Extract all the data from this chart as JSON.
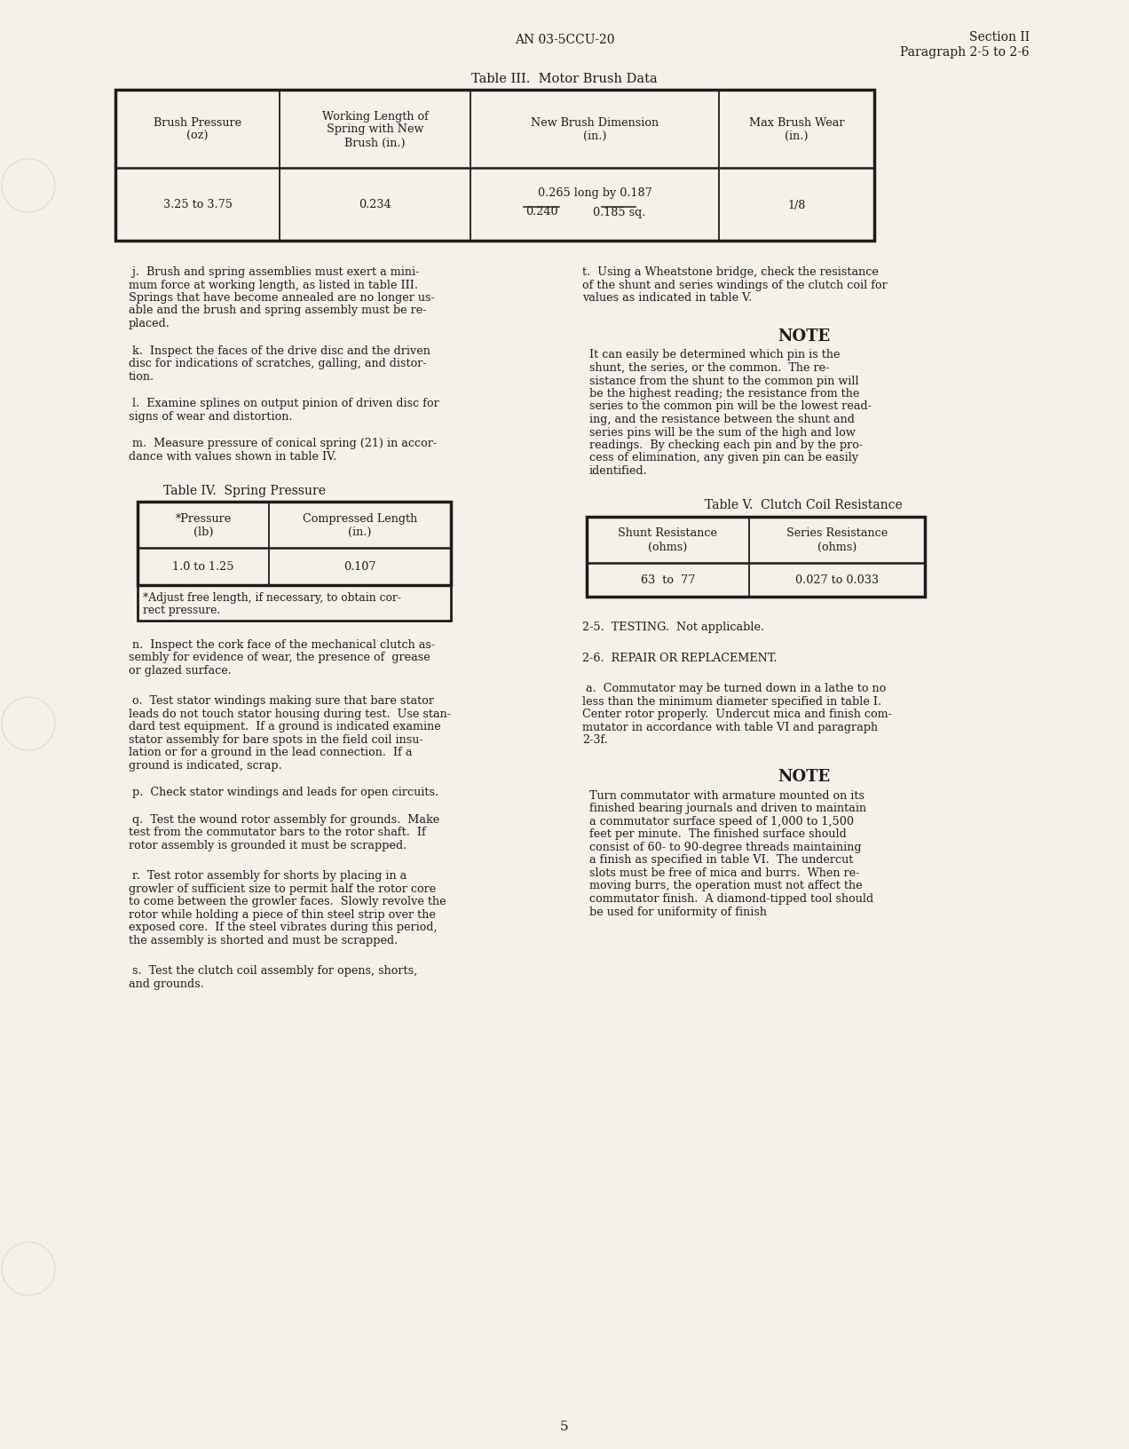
{
  "page_bg": "#f5f0e8",
  "header_doc_num": "AN 03-5CCU-20",
  "header_section": "Section II",
  "header_paragraph": "Paragraph 2-5 to 2-6",
  "table3_title": "Table III.  Motor Brush Data",
  "table3_col1_header": "Brush Pressure\n(oz)",
  "table3_col2_header": "Working Length of\nSpring with New\nBrush (in.)",
  "table3_col3_header": "New Brush Dimension\n(in.)",
  "table3_col4_header": "Max Brush Wear\n(in.)",
  "table3_data_col1": "3.25 to 3.75",
  "table3_data_col2": "0.234",
  "table3_data_col3_line1": "0.265 long by 0.187",
  "table3_data_col3_line2a": "0.240",
  "table3_data_col3_line2b": "0.185",
  "table3_data_col3_sq": "sq.",
  "table3_data_col4": "1/8",
  "table4_title": "Table IV.  Spring Pressure",
  "table4_col1_header": "*Pressure\n(lb)",
  "table4_col2_header": "Compressed Length\n(in.)",
  "table4_data_col1": "1.0 to 1.25",
  "table4_data_col2": "0.107",
  "table4_footnote_line1": "*Adjust free length, if necessary, to obtain cor-",
  "table4_footnote_line2": "rect pressure.",
  "table5_title": "Table V.  Clutch Coil Resistance",
  "table5_col1_header": "Shunt Resistance\n(ohms)",
  "table5_col2_header": "Series Resistance\n(ohms)",
  "table5_data_col1": "63  to  77",
  "table5_data_col2": "0.027 to 0.033",
  "note1_title": "NOTE",
  "note1_lines": [
    "It can easily be determined which pin is the",
    "shunt, the series, or the common.  The re-",
    "sistance from the shunt to the common pin will",
    "be the highest reading; the resistance from the",
    "series to the common pin will be the lowest read-",
    "ing, and the resistance between the shunt and",
    "series pins will be the sum of the high and low",
    "readings.  By checking each pin and by the pro-",
    "cess of elimination, any given pin can be easily",
    "identified."
  ],
  "note2_title": "NOTE",
  "note2_lines": [
    "Turn commutator with armature mounted on its",
    "finished bearing journals and driven to maintain",
    "a commutator surface speed of 1,000 to 1,500",
    "feet per minute.  The finished surface should",
    "consist of 60- to 90-degree threads maintaining",
    "a finish as specified in table VI.  The undercut",
    "slots must be free of mica and burrs.  When re-",
    "moving burrs, the operation must not affect the",
    "commutator finish.  A diamond-tipped tool should",
    "be used for uniformity of finish"
  ],
  "left_para_j_lines": [
    " j.  Brush and spring assemblies must exert a mini-",
    "mum force at working length, as listed in table III.",
    "Springs that have become annealed are no longer us-",
    "able and the brush and spring assembly must be re-",
    "placed."
  ],
  "left_para_k_lines": [
    " k.  Inspect the faces of the drive disc and the driven",
    "disc for indications of scratches, galling, and distor-",
    "tion."
  ],
  "left_para_l_lines": [
    " l.  Examine splines on output pinion of driven disc for",
    "signs of wear and distortion."
  ],
  "left_para_m_lines": [
    " m.  Measure pressure of conical spring (21) in accor-",
    "dance with values shown in table IV."
  ],
  "left_para_n_lines": [
    " n.  Inspect the cork face of the mechanical clutch as-",
    "sembly for evidence of wear, the presence of  grease",
    "or glazed surface."
  ],
  "left_para_o_lines": [
    " o.  Test stator windings making sure that bare stator",
    "leads do not touch stator housing during test.  Use stan-",
    "dard test equipment.  If a ground is indicated examine",
    "stator assembly for bare spots in the field coil insu-",
    "lation or for a ground in the lead connection.  If a",
    "ground is indicated, scrap."
  ],
  "left_para_p_lines": [
    " p.  Check stator windings and leads for open circuits."
  ],
  "left_para_q_lines": [
    " q.  Test the wound rotor assembly for grounds.  Make",
    "test from the commutator bars to the rotor shaft.  If",
    "rotor assembly is grounded it must be scrapped."
  ],
  "left_para_r_lines": [
    " r.  Test rotor assembly for shorts by placing in a",
    "growler of sufficient size to permit half the rotor core",
    "to come between the growler faces.  Slowly revolve the",
    "rotor while holding a piece of thin steel strip over the",
    "exposed core.  If the steel vibrates during this period,",
    "the assembly is shorted and must be scrapped."
  ],
  "left_para_s_lines": [
    " s.  Test the clutch coil assembly for opens, shorts,",
    "and grounds."
  ],
  "right_para_t_lines": [
    "t.  Using a Wheatstone bridge, check the resistance",
    "of the shunt and series windings of the clutch coil for",
    "values as indicated in table V."
  ],
  "section25": "2-5.  TESTING.  Not applicable.",
  "section26": "2-6.  REPAIR OR REPLACEMENT.",
  "section26a_lines": [
    " a.  Commutator may be turned down in a lathe to no",
    "less than the minimum diameter specified in table I.",
    "Center rotor properly.  Undercut mica and finish com-",
    "mutator in accordance with table VI and paragraph",
    "2-3f."
  ],
  "page_number": "5",
  "font_color": "#1c1c1c",
  "table_line_color": "#1c1c1c"
}
